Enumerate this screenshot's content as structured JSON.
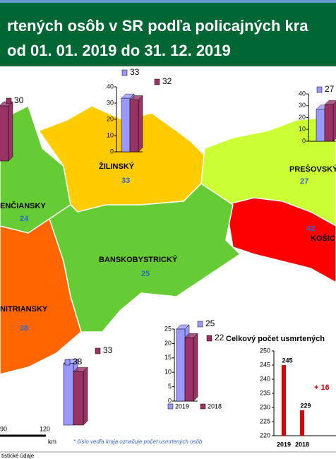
{
  "title": [
    "rtených osôb v SR podľa policajných kra",
    "od 01. 01. 2019 do 31. 12. 2019"
  ],
  "regions": [
    {
      "name": "ENČIANSKY",
      "count": 24
    },
    {
      "name": "ŽILINSKÝ",
      "count": 33
    },
    {
      "name": "PREŠOVSKÝ",
      "count": 27
    },
    {
      "name": "BANSKOBYSTRICKÝ",
      "count": 25
    },
    {
      "name": "NITRIANSKY",
      "count": 38
    },
    {
      "name": "KOŠIC",
      "count": 42
    }
  ],
  "region_charts": [
    {
      "values": [
        null,
        30
      ],
      "ylim": [
        0,
        40
      ]
    },
    {
      "values": [
        33,
        32
      ],
      "ylim": [
        0,
        40
      ],
      "yticks": [
        0,
        10,
        20,
        30,
        40
      ]
    },
    {
      "values": [
        27,
        31
      ],
      "value_labels": [
        "27",
        null
      ],
      "ylim": [
        0,
        40
      ],
      "yticks": [
        0,
        10,
        20,
        30,
        40
      ]
    },
    {
      "values": [
        25,
        22
      ],
      "ylim": [
        0,
        25
      ],
      "yticks": [
        0,
        5,
        10,
        15,
        20,
        25
      ]
    },
    {
      "values": [
        38,
        33
      ],
      "ylim": [
        0,
        40
      ]
    }
  ],
  "legend": {
    "series": [
      {
        "name": "2019",
        "color": "#9999ff"
      },
      {
        "name": "2018",
        "color": "#993366"
      }
    ]
  },
  "total_chart": {
    "title": "Celkový počet usmrtených",
    "categories": [
      "2019",
      "2018"
    ],
    "values": [
      245,
      229
    ],
    "ylim": [
      220,
      250
    ],
    "yticks": [
      220,
      225,
      230,
      235,
      240,
      245,
      250
    ],
    "annotation": "+ 16",
    "color": "#dd0000"
  },
  "scale_bar": {
    "ticks": [
      "90",
      "120"
    ],
    "unit": "km"
  },
  "note": "* číslo vedľa kraja označuje počet usmrtených osôb",
  "footer": "tistické údaje"
}
